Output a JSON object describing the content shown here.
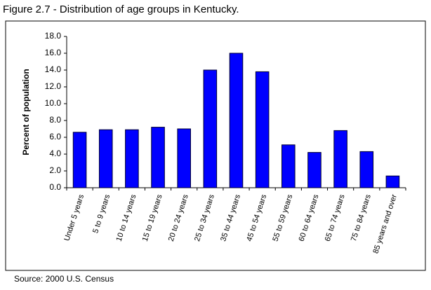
{
  "chart_data": {
    "type": "bar",
    "title": "Figure 2.7 - Distribution of age groups in Kentucky.",
    "y_label": "Percent of population",
    "source": "Source: 2000 U.S. Census",
    "categories": [
      "Under 5 years",
      "5 to 9 years",
      "10 to 14 years",
      "15 to 19 years",
      "20 to 24 years",
      "25 to 34 years",
      "35 to 44 years",
      "45 to 54 years",
      "55 to 59 years",
      "60 to 64 years",
      "65 to 74 years",
      "75 to 84 years",
      "85 years and over"
    ],
    "values": [
      6.6,
      6.9,
      6.9,
      7.2,
      7.0,
      14.0,
      16.0,
      13.8,
      5.1,
      4.2,
      6.8,
      4.3,
      1.4
    ],
    "color": "#0000ff",
    "ylim": [
      0,
      18
    ],
    "yticks": [
      {
        "value": 0,
        "label": "0.0"
      },
      {
        "value": 2,
        "label": "2.0"
      },
      {
        "value": 4,
        "label": "4.0"
      },
      {
        "value": 6,
        "label": "6.0"
      },
      {
        "value": 8,
        "label": "8.0"
      },
      {
        "value": 10,
        "label": "10.0"
      },
      {
        "value": 12,
        "label": "12.0"
      },
      {
        "value": 14,
        "label": "14.0"
      },
      {
        "value": 16,
        "label": "16.0"
      },
      {
        "value": 18,
        "label": "18.0"
      }
    ],
    "grid": false
  }
}
